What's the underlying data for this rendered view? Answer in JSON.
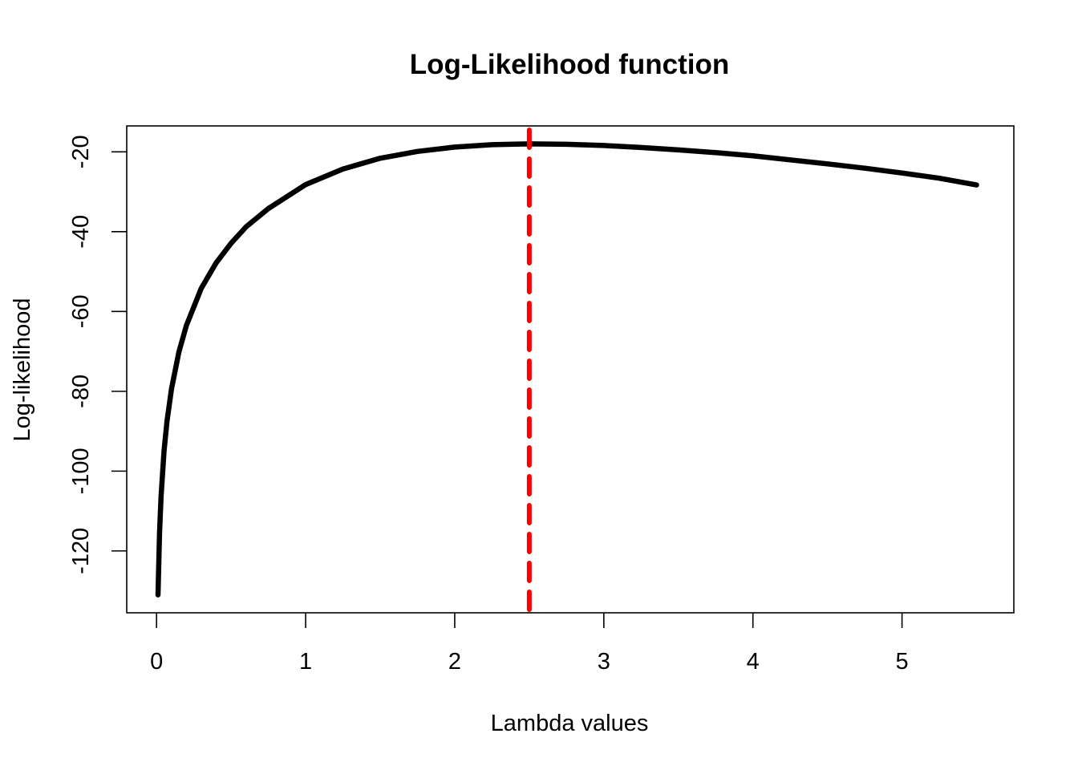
{
  "chart_data": {
    "type": "line",
    "title": "Log-Likelihood function",
    "xlabel": "Lambda values",
    "ylabel": "Log-likelihood",
    "xlim": [
      -0.2,
      5.75
    ],
    "ylim": [
      -135.5,
      -13.5
    ],
    "x_ticks": [
      0,
      1,
      2,
      3,
      4,
      5
    ],
    "y_ticks": [
      -120,
      -100,
      -80,
      -60,
      -40,
      -20
    ],
    "grid": false,
    "series": [
      {
        "color": "#000000",
        "x": [
          0.01,
          0.02,
          0.03,
          0.05,
          0.07,
          0.1,
          0.15,
          0.2,
          0.3,
          0.4,
          0.5,
          0.6,
          0.75,
          1.0,
          1.25,
          1.5,
          1.75,
          2.0,
          2.25,
          2.5,
          2.75,
          3.0,
          3.25,
          3.5,
          3.75,
          4.0,
          4.25,
          4.5,
          4.75,
          5.0,
          5.25,
          5.5
        ],
        "y": [
          -131.0,
          -115.5,
          -106.4,
          -95.0,
          -87.5,
          -79.4,
          -70.1,
          -63.5,
          -54.2,
          -47.8,
          -42.9,
          -38.8,
          -34.2,
          -28.2,
          -24.3,
          -21.6,
          -19.9,
          -18.8,
          -18.2,
          -18.0,
          -18.1,
          -18.4,
          -18.9,
          -19.5,
          -20.2,
          -21.0,
          -22.0,
          -23.0,
          -24.1,
          -25.3,
          -26.6,
          -28.3
        ]
      }
    ],
    "vline": {
      "x": 2.5,
      "color": "#ff0000",
      "style": "dashed"
    }
  }
}
